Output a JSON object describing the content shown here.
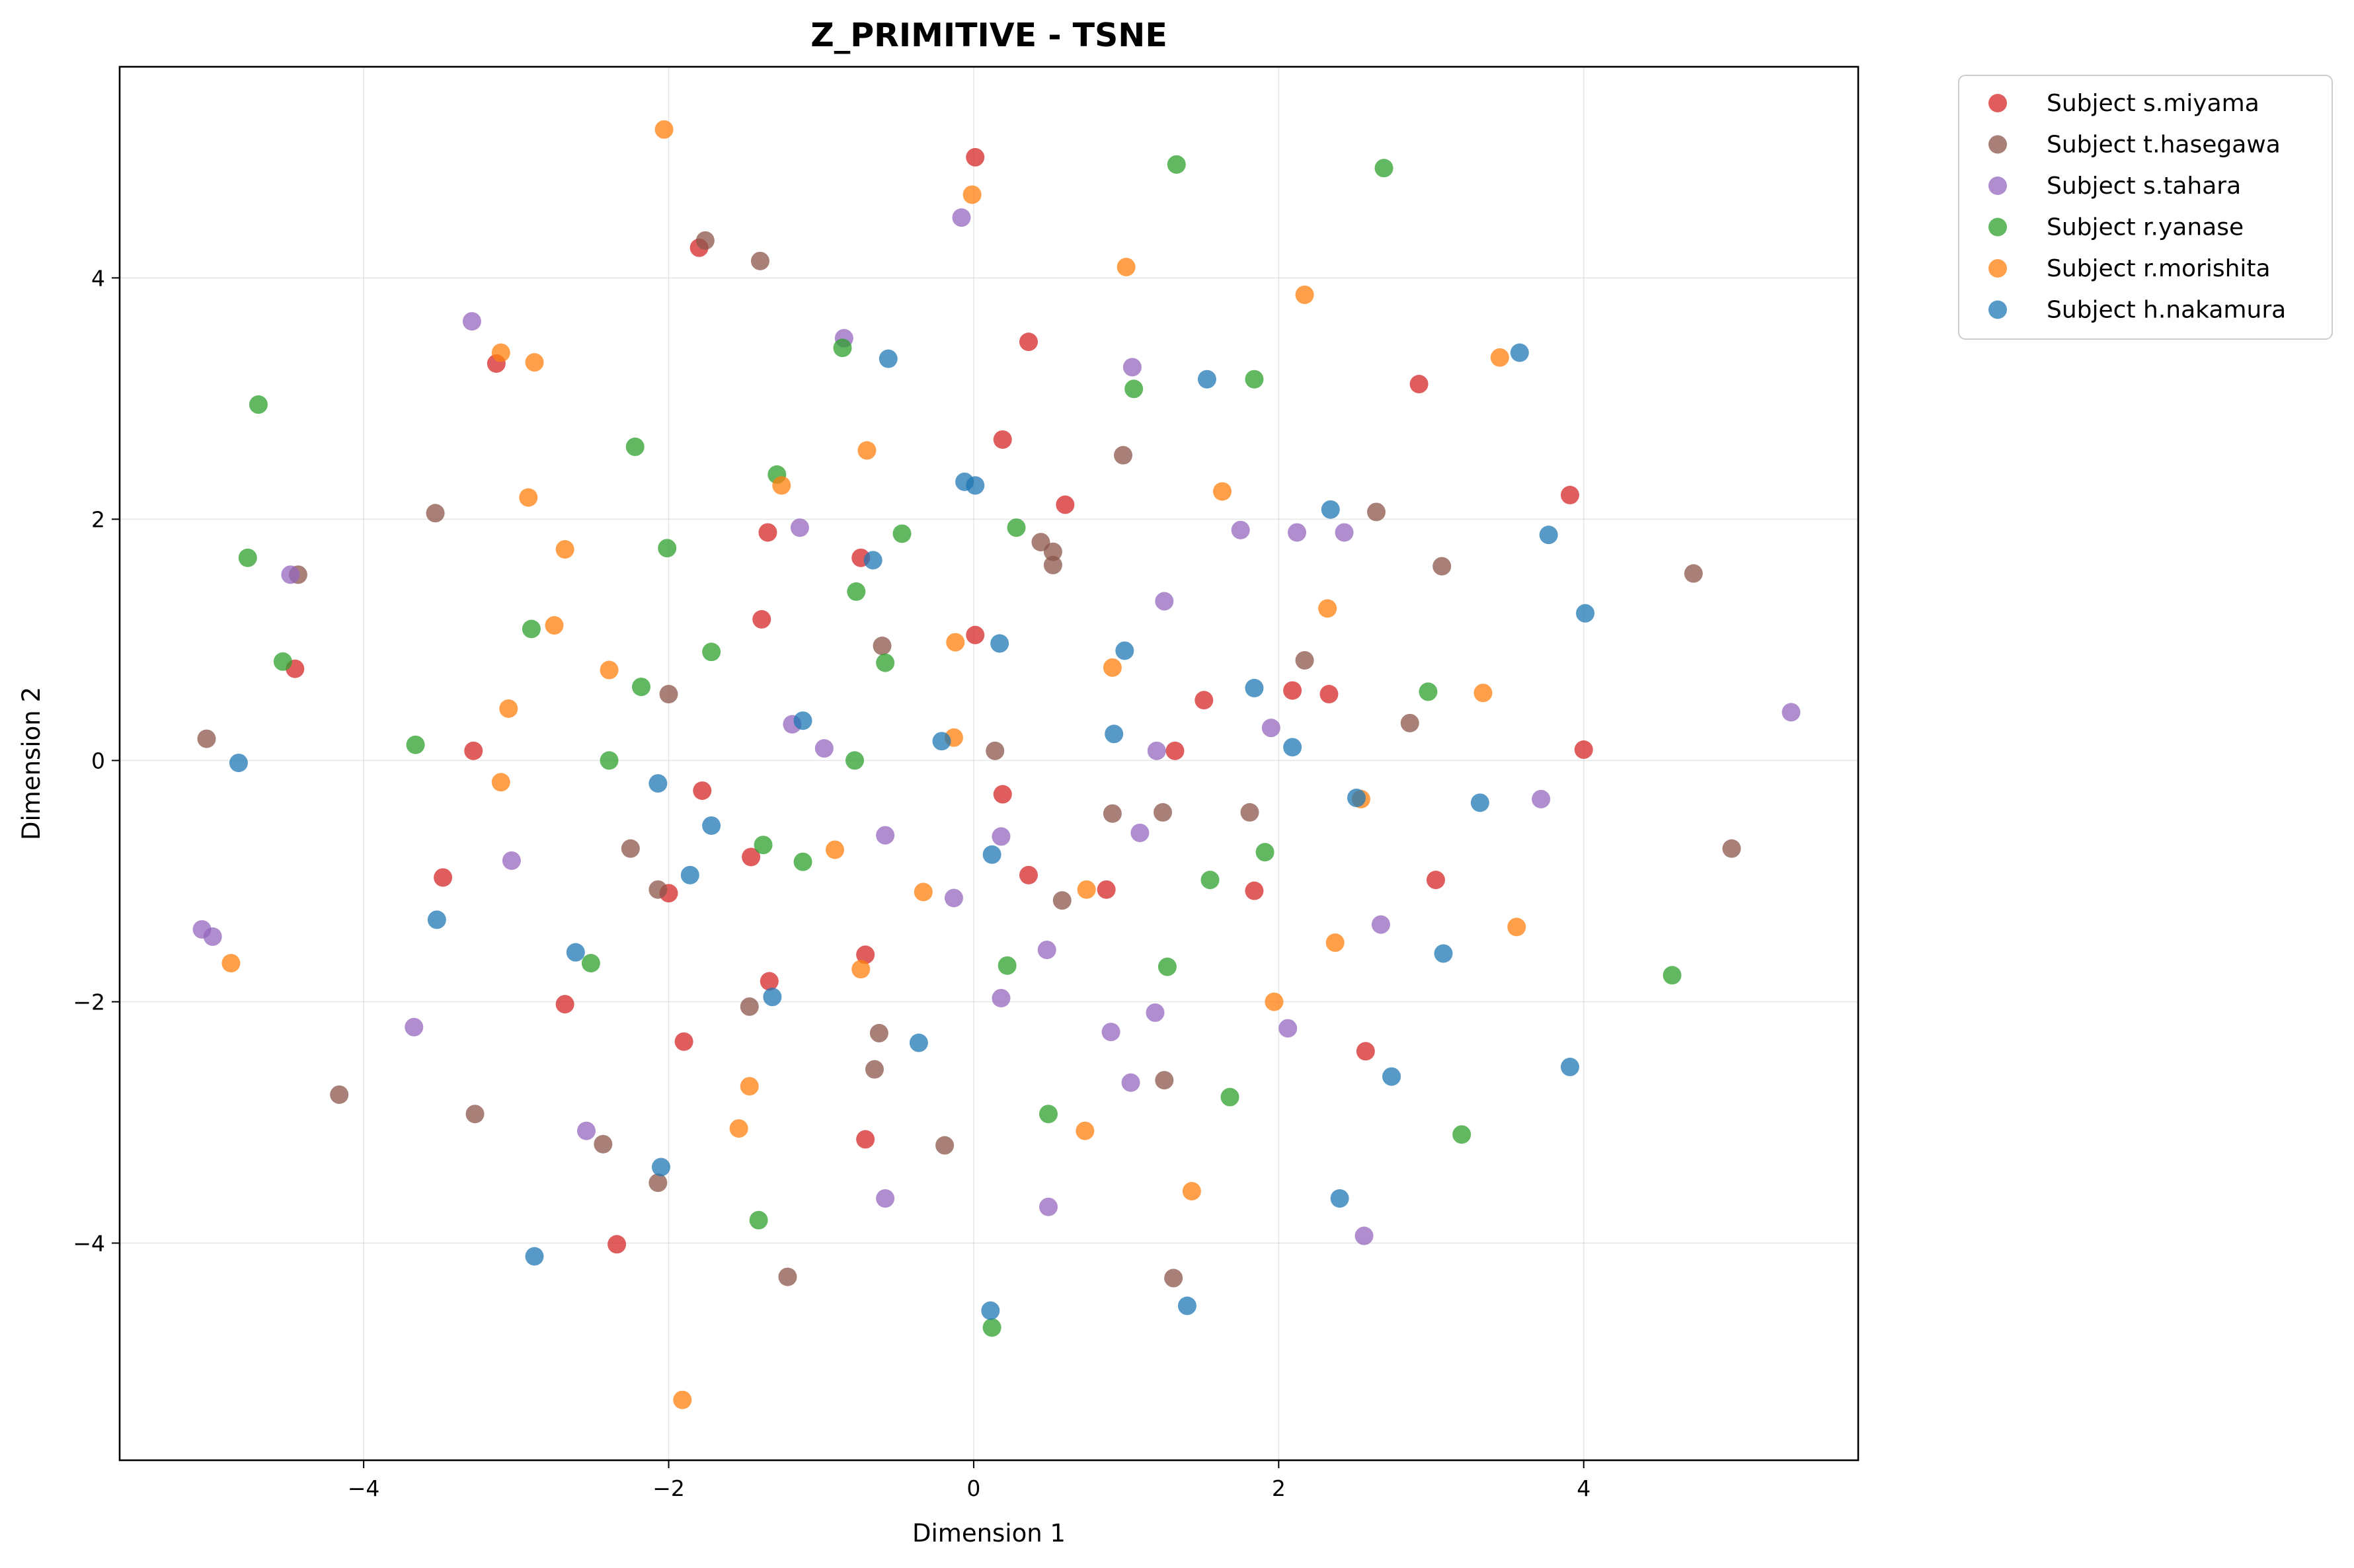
{
  "chart_data": {
    "type": "scatter",
    "title": "Z_PRIMITIVE - TSNE",
    "xlabel": "Dimension 1",
    "ylabel": "Dimension 2",
    "xlim": [
      -5.6,
      5.8
    ],
    "ylim": [
      -5.8,
      5.75
    ],
    "xticks": [
      -4,
      -2,
      0,
      2,
      4
    ],
    "yticks": [
      -4,
      -2,
      0,
      2,
      4
    ],
    "grid": true,
    "legend_position": "outside-top-right",
    "series": [
      {
        "name": "Subject s.miyama",
        "color": "#d62728",
        "points": [
          [
            0.01,
            5.0
          ],
          [
            -1.8,
            4.25
          ],
          [
            0.36,
            3.47
          ],
          [
            -3.13,
            3.29
          ],
          [
            2.92,
            3.12
          ],
          [
            0.19,
            2.66
          ],
          [
            0.6,
            2.12
          ],
          [
            3.91,
            2.2
          ],
          [
            -1.35,
            1.89
          ],
          [
            -0.74,
            1.68
          ],
          [
            -1.39,
            1.17
          ],
          [
            0.01,
            1.04
          ],
          [
            -4.45,
            0.76
          ],
          [
            1.51,
            0.5
          ],
          [
            2.09,
            0.58
          ],
          [
            2.33,
            0.55
          ],
          [
            -3.28,
            0.08
          ],
          [
            1.32,
            0.08
          ],
          [
            4.0,
            0.09
          ],
          [
            -1.78,
            -0.25
          ],
          [
            0.19,
            -0.28
          ],
          [
            -3.48,
            -0.97
          ],
          [
            -1.46,
            -0.8
          ],
          [
            -2.0,
            -1.1
          ],
          [
            0.36,
            -0.95
          ],
          [
            0.87,
            -1.07
          ],
          [
            1.84,
            -1.08
          ],
          [
            3.03,
            -0.99
          ],
          [
            -0.71,
            -1.61
          ],
          [
            -1.34,
            -1.83
          ],
          [
            -2.68,
            -2.02
          ],
          [
            -1.9,
            -2.33
          ],
          [
            2.57,
            -2.41
          ],
          [
            -0.71,
            -3.14
          ],
          [
            -2.34,
            -4.01
          ]
        ]
      },
      {
        "name": "Subject t.hasegawa",
        "color": "#8c564b",
        "points": [
          [
            -1.76,
            4.31
          ],
          [
            -1.4,
            4.14
          ],
          [
            0.98,
            2.53
          ],
          [
            -3.53,
            2.05
          ],
          [
            0.44,
            1.81
          ],
          [
            0.52,
            1.73
          ],
          [
            0.52,
            1.62
          ],
          [
            2.64,
            2.06
          ],
          [
            3.07,
            1.61
          ],
          [
            4.72,
            1.55
          ],
          [
            -4.43,
            1.54
          ],
          [
            -0.6,
            0.95
          ],
          [
            2.17,
            0.83
          ],
          [
            -2.0,
            0.55
          ],
          [
            -5.03,
            0.18
          ],
          [
            0.14,
            0.08
          ],
          [
            2.86,
            0.31
          ],
          [
            0.91,
            -0.44
          ],
          [
            1.24,
            -0.43
          ],
          [
            1.81,
            -0.43
          ],
          [
            4.97,
            -0.73
          ],
          [
            -2.25,
            -0.73
          ],
          [
            -2.07,
            -1.07
          ],
          [
            0.58,
            -1.16
          ],
          [
            -1.47,
            -2.04
          ],
          [
            -0.62,
            -2.26
          ],
          [
            -0.65,
            -2.56
          ],
          [
            1.25,
            -2.65
          ],
          [
            -4.16,
            -2.77
          ],
          [
            -3.27,
            -2.93
          ],
          [
            -2.43,
            -3.18
          ],
          [
            -0.19,
            -3.19
          ],
          [
            -2.07,
            -3.5
          ],
          [
            -1.22,
            -4.28
          ],
          [
            1.31,
            -4.29
          ]
        ]
      },
      {
        "name": "Subject s.tahara",
        "color": "#9467bd",
        "points": [
          [
            -0.08,
            4.5
          ],
          [
            -3.29,
            3.64
          ],
          [
            -0.85,
            3.5
          ],
          [
            1.04,
            3.26
          ],
          [
            -1.14,
            1.93
          ],
          [
            1.75,
            1.91
          ],
          [
            2.12,
            1.89
          ],
          [
            2.43,
            1.89
          ],
          [
            -4.48,
            1.54
          ],
          [
            1.25,
            1.32
          ],
          [
            -1.19,
            0.3
          ],
          [
            -0.98,
            0.1
          ],
          [
            1.2,
            0.08
          ],
          [
            1.95,
            0.27
          ],
          [
            5.36,
            0.4
          ],
          [
            3.72,
            -0.32
          ],
          [
            -0.58,
            -0.62
          ],
          [
            0.18,
            -0.63
          ],
          [
            1.09,
            -0.6
          ],
          [
            -3.03,
            -0.83
          ],
          [
            -0.13,
            -1.14
          ],
          [
            2.67,
            -1.36
          ],
          [
            -5.06,
            -1.4
          ],
          [
            -4.99,
            -1.46
          ],
          [
            0.48,
            -1.57
          ],
          [
            0.18,
            -1.97
          ],
          [
            1.19,
            -2.09
          ],
          [
            -3.67,
            -2.21
          ],
          [
            0.9,
            -2.25
          ],
          [
            2.06,
            -2.22
          ],
          [
            1.03,
            -2.67
          ],
          [
            -2.54,
            -3.07
          ],
          [
            -0.58,
            -3.63
          ],
          [
            0.49,
            -3.7
          ],
          [
            2.56,
            -3.94
          ]
        ]
      },
      {
        "name": "Subject r.yanase",
        "color": "#2ca02c",
        "points": [
          [
            1.33,
            4.94
          ],
          [
            2.69,
            4.91
          ],
          [
            -0.86,
            3.42
          ],
          [
            1.05,
            3.08
          ],
          [
            1.84,
            3.16
          ],
          [
            -4.69,
            2.95
          ],
          [
            -2.22,
            2.6
          ],
          [
            -1.29,
            2.37
          ],
          [
            -0.47,
            1.88
          ],
          [
            0.28,
            1.93
          ],
          [
            -4.76,
            1.68
          ],
          [
            -2.01,
            1.76
          ],
          [
            -0.77,
            1.4
          ],
          [
            -2.9,
            1.09
          ],
          [
            -4.53,
            0.82
          ],
          [
            -1.72,
            0.9
          ],
          [
            -0.58,
            0.81
          ],
          [
            -2.18,
            0.61
          ],
          [
            2.98,
            0.57
          ],
          [
            -3.66,
            0.13
          ],
          [
            -2.39,
            0.0
          ],
          [
            -0.78,
            0.0
          ],
          [
            -1.38,
            -0.7
          ],
          [
            -1.12,
            -0.84
          ],
          [
            1.55,
            -0.99
          ],
          [
            1.91,
            -0.76
          ],
          [
            -2.51,
            -1.68
          ],
          [
            0.22,
            -1.7
          ],
          [
            1.27,
            -1.71
          ],
          [
            4.58,
            -1.78
          ],
          [
            0.49,
            -2.93
          ],
          [
            1.68,
            -2.79
          ],
          [
            3.2,
            -3.1
          ],
          [
            -1.41,
            -3.81
          ],
          [
            0.12,
            -4.7
          ]
        ]
      },
      {
        "name": "Subject r.morishita",
        "color": "#ff7f0e",
        "points": [
          [
            -2.03,
            5.23
          ],
          [
            -0.01,
            4.69
          ],
          [
            1.0,
            4.09
          ],
          [
            2.17,
            3.86
          ],
          [
            -3.1,
            3.38
          ],
          [
            -2.88,
            3.3
          ],
          [
            3.45,
            3.34
          ],
          [
            -0.7,
            2.57
          ],
          [
            -1.26,
            2.28
          ],
          [
            1.63,
            2.23
          ],
          [
            -2.92,
            2.18
          ],
          [
            -2.68,
            1.75
          ],
          [
            2.32,
            1.26
          ],
          [
            -2.75,
            1.12
          ],
          [
            -0.12,
            0.98
          ],
          [
            0.91,
            0.77
          ],
          [
            -2.39,
            0.75
          ],
          [
            -3.05,
            0.43
          ],
          [
            3.34,
            0.56
          ],
          [
            -0.13,
            0.19
          ],
          [
            -3.1,
            -0.18
          ],
          [
            2.54,
            -0.32
          ],
          [
            -0.91,
            -0.74
          ],
          [
            -0.33,
            -1.09
          ],
          [
            0.74,
            -1.07
          ],
          [
            2.37,
            -1.51
          ],
          [
            3.56,
            -1.38
          ],
          [
            -4.87,
            -1.68
          ],
          [
            -0.74,
            -1.73
          ],
          [
            1.97,
            -2.0
          ],
          [
            -1.47,
            -2.7
          ],
          [
            -1.54,
            -3.05
          ],
          [
            0.73,
            -3.07
          ],
          [
            1.43,
            -3.57
          ],
          [
            -1.91,
            -5.3
          ]
        ]
      },
      {
        "name": "Subject h.nakamura",
        "color": "#1f77b4",
        "points": [
          [
            -0.56,
            3.33
          ],
          [
            1.53,
            3.16
          ],
          [
            3.58,
            3.38
          ],
          [
            -0.06,
            2.31
          ],
          [
            0.01,
            2.28
          ],
          [
            2.34,
            2.08
          ],
          [
            3.77,
            1.87
          ],
          [
            4.01,
            1.22
          ],
          [
            -0.66,
            1.66
          ],
          [
            0.17,
            0.97
          ],
          [
            0.99,
            0.91
          ],
          [
            1.84,
            0.6
          ],
          [
            0.92,
            0.22
          ],
          [
            2.09,
            0.11
          ],
          [
            -1.12,
            0.33
          ],
          [
            -0.21,
            0.16
          ],
          [
            -4.82,
            -0.02
          ],
          [
            -2.07,
            -0.19
          ],
          [
            2.51,
            -0.31
          ],
          [
            3.32,
            -0.35
          ],
          [
            -1.72,
            -0.54
          ],
          [
            0.12,
            -0.78
          ],
          [
            -1.86,
            -0.95
          ],
          [
            -3.52,
            -1.32
          ],
          [
            3.08,
            -1.6
          ],
          [
            -2.61,
            -1.59
          ],
          [
            -1.32,
            -1.96
          ],
          [
            -0.36,
            -2.34
          ],
          [
            2.74,
            -2.62
          ],
          [
            3.91,
            -2.54
          ],
          [
            -2.05,
            -3.37
          ],
          [
            2.4,
            -3.63
          ],
          [
            -2.88,
            -4.11
          ],
          [
            0.11,
            -4.56
          ],
          [
            1.4,
            -4.52
          ]
        ]
      }
    ]
  }
}
